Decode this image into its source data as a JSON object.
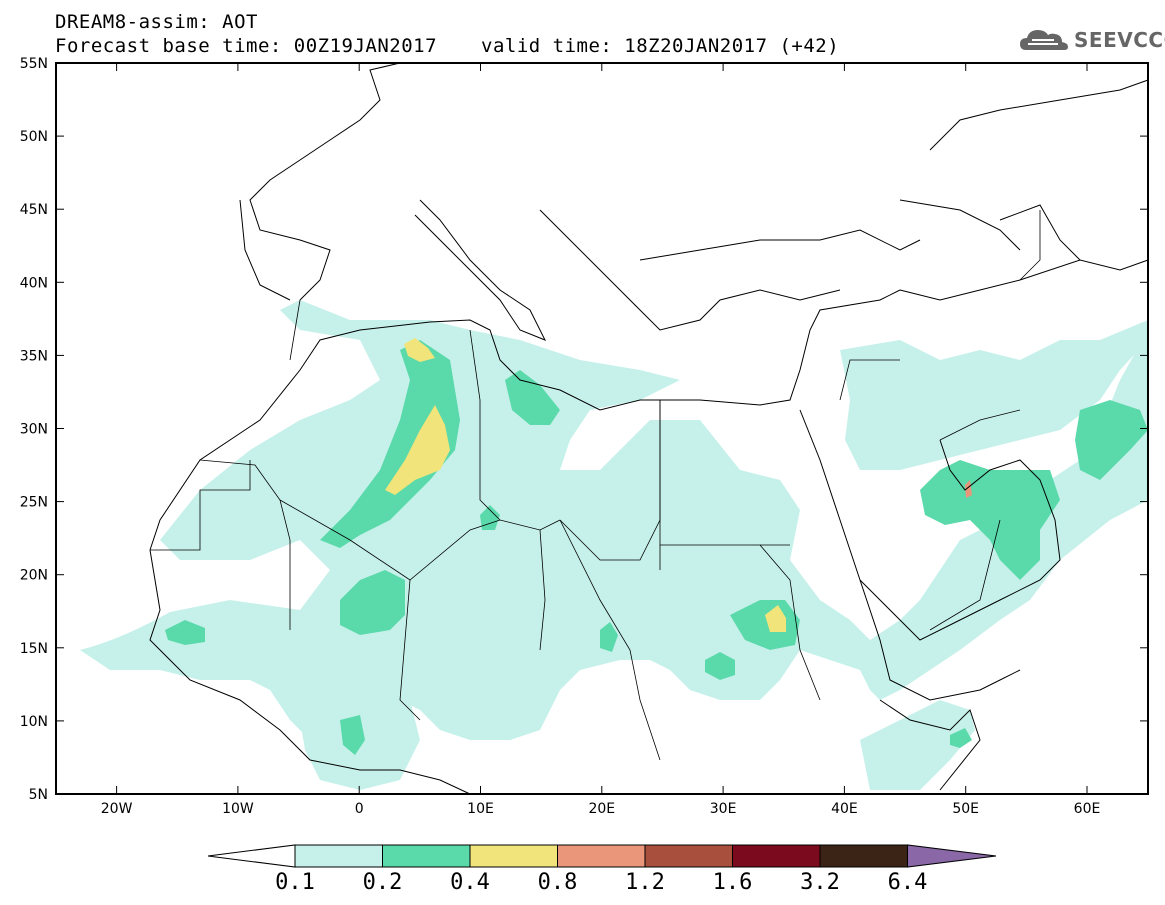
{
  "header": {
    "line1": "DREAM8-assim: AOT",
    "line2": "Forecast base time: 00Z19JAN2017",
    "valid": "valid time: 18Z20JAN2017 (+42)",
    "logo_text": "SEEVCCC"
  },
  "axes": {
    "lat_labels": [
      "55N",
      "50N",
      "45N",
      "40N",
      "35N",
      "30N",
      "25N",
      "20N",
      "15N",
      "10N",
      "5N"
    ],
    "lon_labels": [
      "20W",
      "10W",
      "0",
      "10E",
      "20E",
      "30E",
      "40E",
      "50E",
      "60E"
    ]
  },
  "colorbar": {
    "labels": [
      "0.1",
      "0.2",
      "0.4",
      "0.8",
      "1.2",
      "1.6",
      "3.2",
      "6.4"
    ],
    "colors": [
      "#ffffff",
      "#c6f1ea",
      "#5ad9ab",
      "#f0e47a",
      "#e9967a",
      "#a94f3d",
      "#7b0a1e",
      "#3b2316",
      "#8a67a6"
    ]
  }
}
